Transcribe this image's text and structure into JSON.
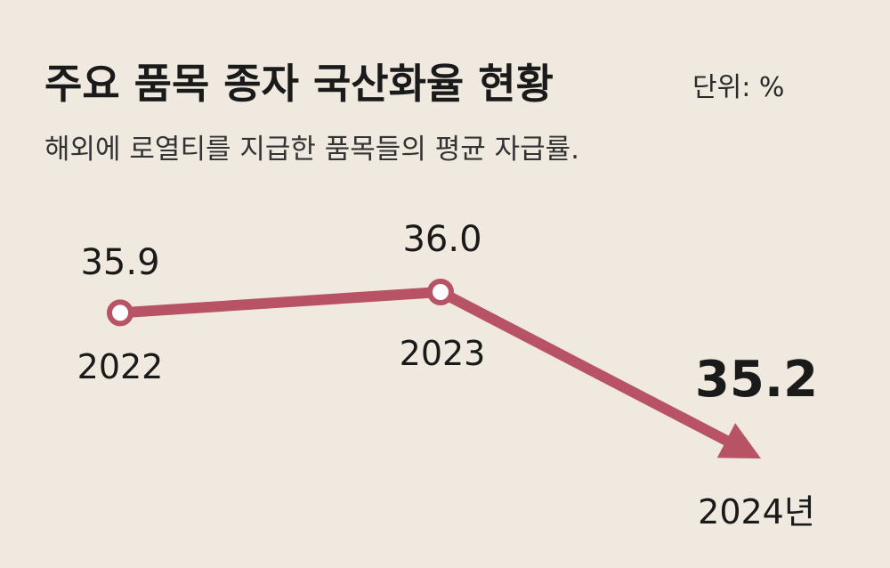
{
  "header": {
    "title": "주요 품목 종자 국산화율 현황",
    "unit": "단위: %",
    "subtitle": "해외에 로열티를 지급한 품목들의 평균 자급률."
  },
  "colors": {
    "background": "#efe9df",
    "line": "#b85265",
    "highlight": "#b85265",
    "text": "#1a1a1a"
  },
  "chart_data": {
    "type": "line",
    "title": "주요 품목 종자 국산화율 현황",
    "subtitle": "해외에 로열티를 지급한 품목들의 평균 자급률.",
    "unit": "단위: %",
    "x": [
      "2022",
      "2023",
      "2024년"
    ],
    "values": [
      35.9,
      36.0,
      35.2
    ],
    "value_labels": [
      "35.9",
      "36.0",
      "35.2"
    ],
    "grid": false,
    "legend": "none"
  }
}
